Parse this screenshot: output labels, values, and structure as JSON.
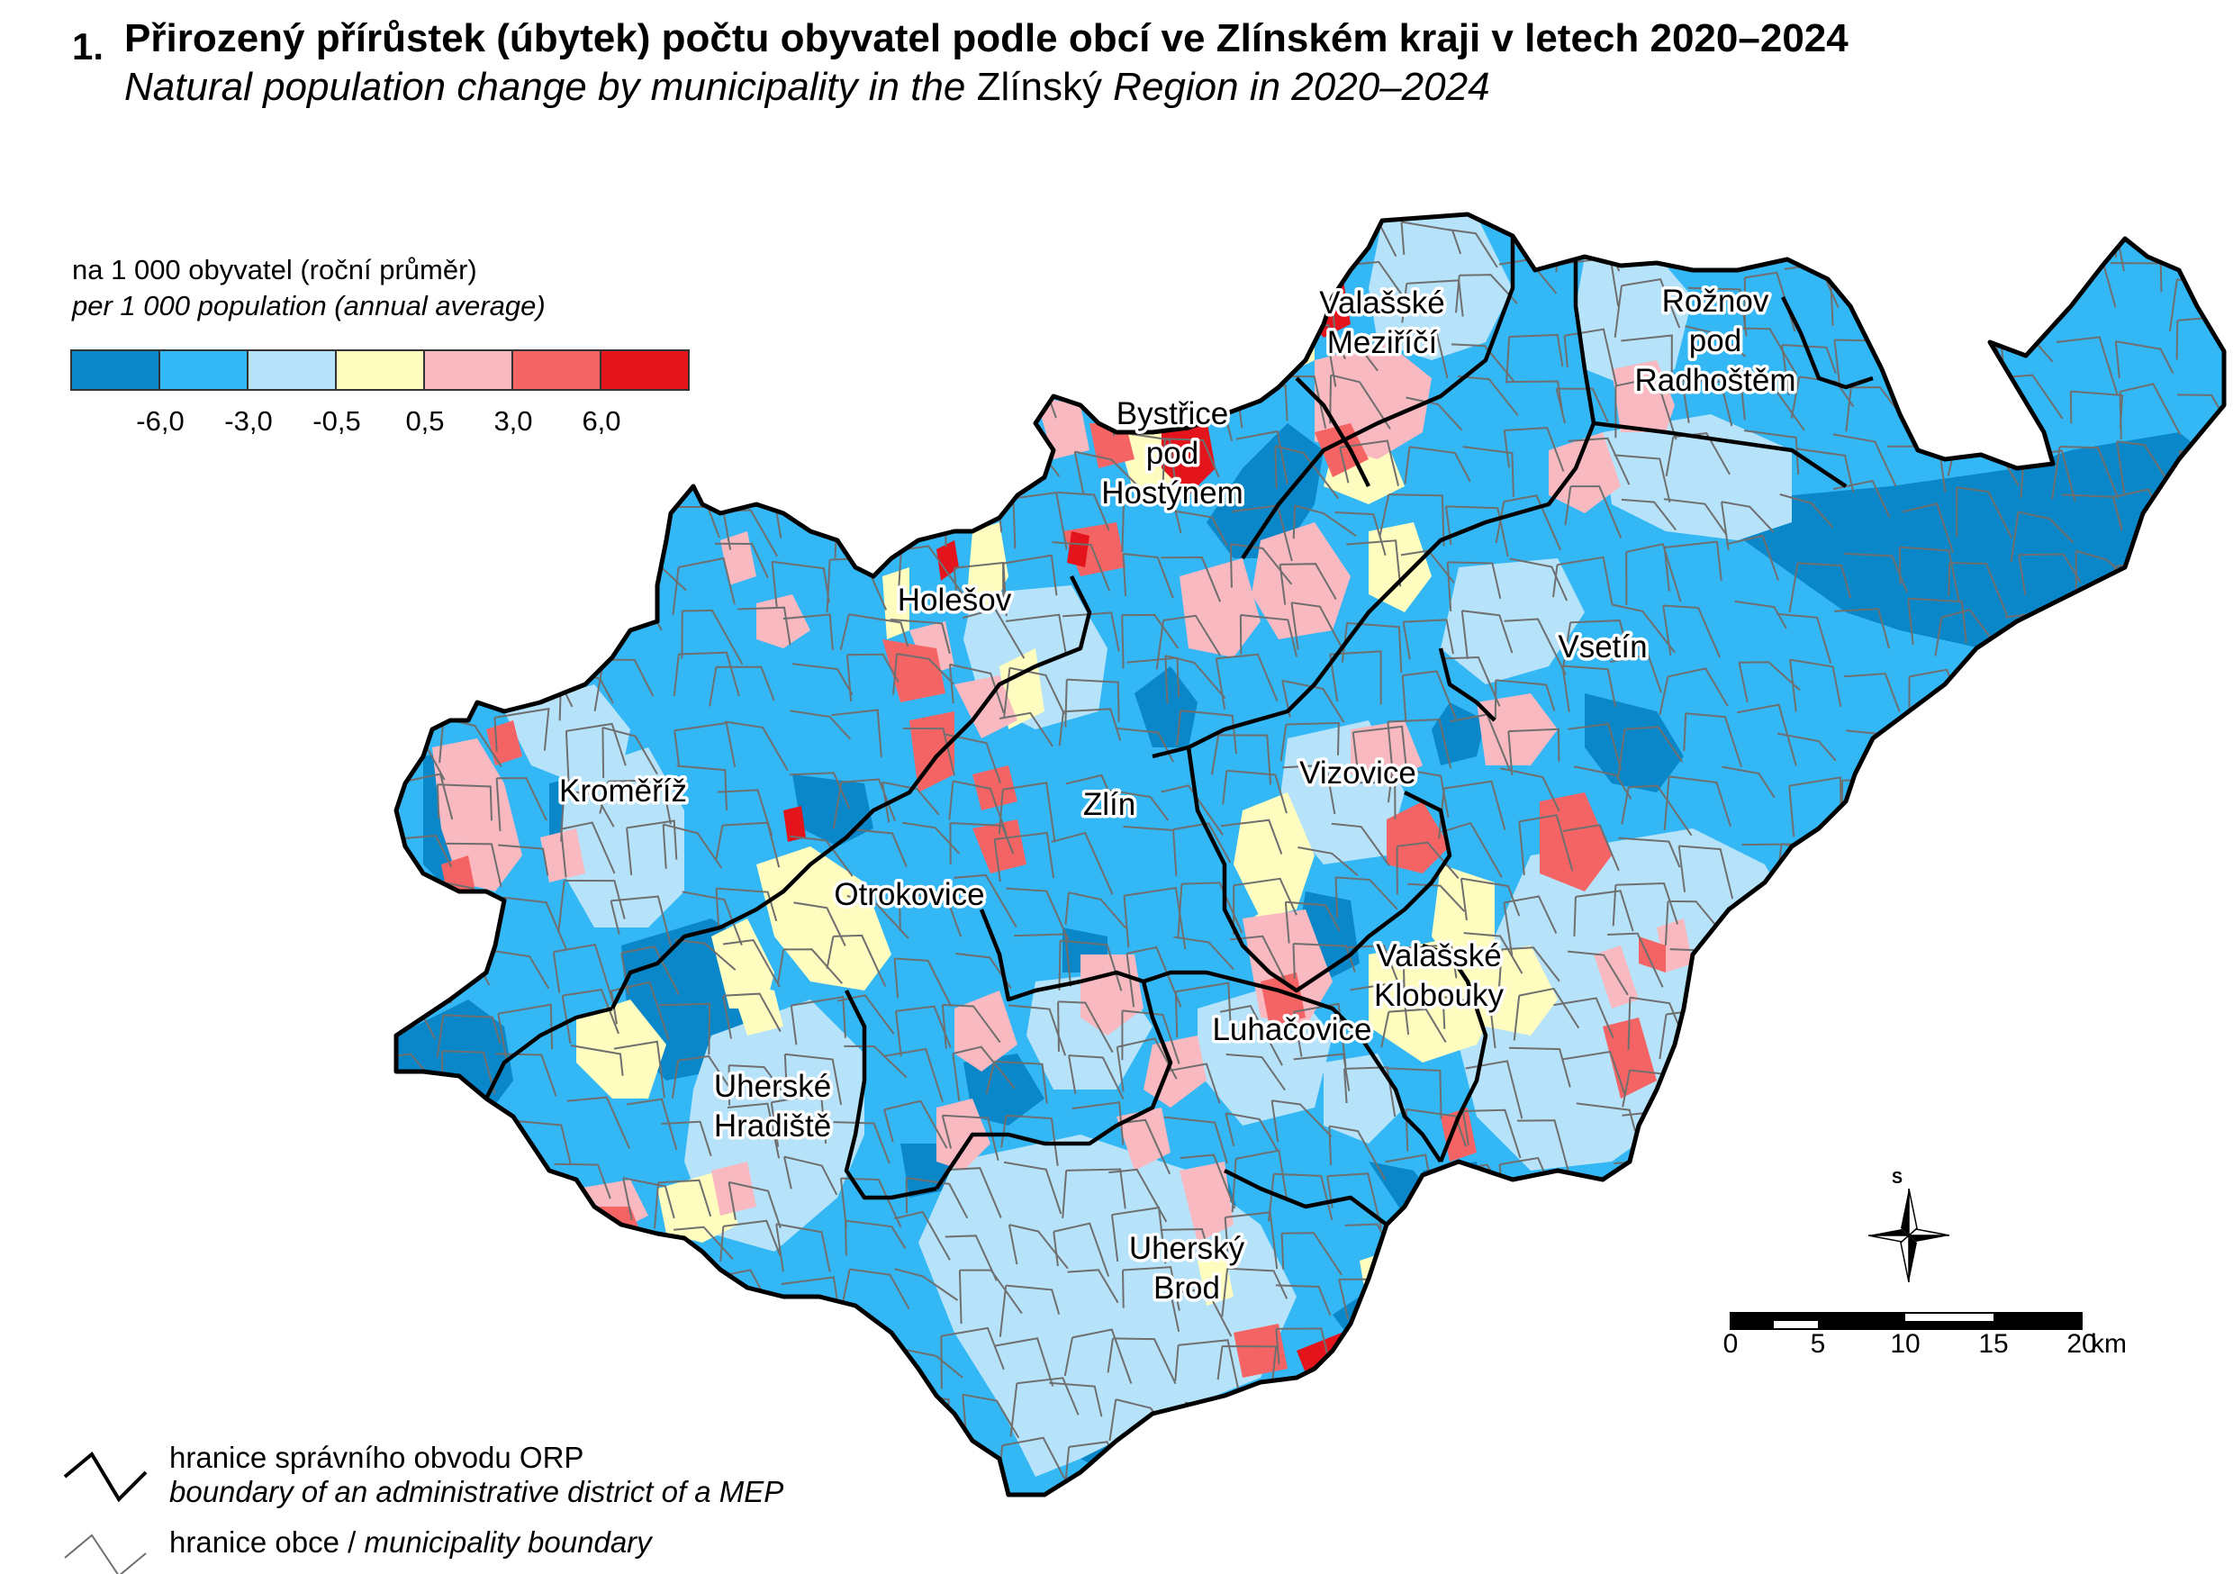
{
  "title": {
    "number": "1.",
    "cz": "Přirozený přírůstek (úbytek) počtu obyvatel podle obcí ve Zlínském kraji v letech 2020–2024",
    "en_before": "Natural population change by municipality in the ",
    "en_region": "Zlínský",
    "en_after": " Region in 2020–2024"
  },
  "legend": {
    "unit_cz": "na 1 000 obyvatel (roční průměr)",
    "unit_en": "per 1 000 population (annual average)",
    "classes": [
      {
        "color": "#0a87c8"
      },
      {
        "color": "#33b7f5"
      },
      {
        "color": "#b7e3fa"
      },
      {
        "color": "#fefcbe"
      },
      {
        "color": "#f8b9c0"
      },
      {
        "color": "#f56464"
      },
      {
        "color": "#e3141b"
      }
    ],
    "breaks": [
      "-6,0",
      "-3,0",
      "-0,5",
      "0,5",
      "3,0",
      "6,0"
    ]
  },
  "districts": [
    {
      "name_lines": [
        "Valašské",
        "Meziříčí"
      ]
    },
    {
      "name_lines": [
        "Rožnov",
        "pod",
        "Radhoštěm"
      ]
    },
    {
      "name_lines": [
        "Bystřice",
        "pod",
        "Hostýnem"
      ]
    },
    {
      "name_lines": [
        "Holešov"
      ]
    },
    {
      "name_lines": [
        "Vsetín"
      ]
    },
    {
      "name_lines": [
        "Kroměříž"
      ]
    },
    {
      "name_lines": [
        "Vizovice"
      ]
    },
    {
      "name_lines": [
        "Zlín"
      ]
    },
    {
      "name_lines": [
        "Otrokovice"
      ]
    },
    {
      "name_lines": [
        "Valašské",
        "Klobouky"
      ]
    },
    {
      "name_lines": [
        "Luhačovice"
      ]
    },
    {
      "name_lines": [
        "Uherské",
        "Hradiště"
      ]
    },
    {
      "name_lines": [
        "Uherský",
        "Brod"
      ]
    }
  ],
  "boundary_legend": {
    "orp_cz": "hranice správního obvodu ORP",
    "orp_en": "boundary of an administrative district of a MEP",
    "obec_cz": "hranice obce /",
    "obec_en": "municipality boundary"
  },
  "scale_bar": {
    "ticks": [
      "0",
      "5",
      "10",
      "15",
      "20"
    ],
    "unit": "km"
  },
  "north_arrow": {
    "label": "S",
    "icon": "compass-rose-icon"
  }
}
